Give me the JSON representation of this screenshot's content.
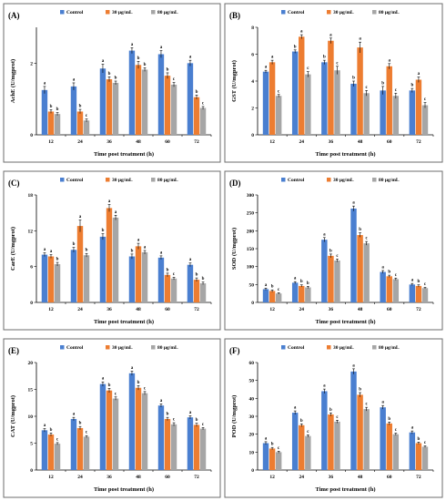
{
  "colors": {
    "Control": "#4a7fd0",
    "30 µg/mL": "#ed7d31",
    "80 µg/mL": "#a6a6a6"
  },
  "chart_data": [
    {
      "type": "bar",
      "panel": "(A)",
      "categories": [
        "12",
        "24",
        "36",
        "48",
        "60",
        "72"
      ],
      "xlabel": "Time post treatment (h)",
      "ylabel": "AchE (U/mgprot)",
      "ylim": [
        0,
        3
      ],
      "yticks": [
        "0",
        "2"
      ],
      "legend": "top",
      "series": [
        {
          "name": "Control",
          "values": [
            1.25,
            1.35,
            1.85,
            2.35,
            2.25,
            2.0
          ],
          "errors": [
            0.1,
            0.1,
            0.12,
            0.08,
            0.1,
            0.08
          ],
          "labels": [
            "a",
            "a",
            "a",
            "a",
            "a",
            "a"
          ]
        },
        {
          "name": "30 µg/mL",
          "values": [
            0.65,
            0.65,
            1.55,
            1.95,
            1.65,
            1.05
          ],
          "errors": [
            0.05,
            0.06,
            0.07,
            0.1,
            0.08,
            0.06
          ],
          "labels": [
            "b",
            "b",
            "b",
            "b",
            "b",
            "b"
          ]
        },
        {
          "name": "80 µg/mL",
          "values": [
            0.58,
            0.4,
            1.45,
            1.82,
            1.4,
            0.75
          ],
          "errors": [
            0.04,
            0.04,
            0.05,
            0.05,
            0.06,
            0.04
          ],
          "labels": [
            "b",
            "c",
            "b",
            "b",
            "c",
            "c"
          ]
        }
      ]
    },
    {
      "type": "bar",
      "panel": "(B)",
      "categories": [
        "12",
        "24",
        "36",
        "48",
        "60",
        "72"
      ],
      "xlabel": "Time post treatment (h)",
      "ylabel": "GST (U/mgprot)",
      "ylim": [
        0,
        8
      ],
      "yticks": [
        "0",
        "2",
        "4",
        "6",
        "8"
      ],
      "legend": "top",
      "series": [
        {
          "name": "Control",
          "values": [
            4.7,
            6.2,
            5.4,
            3.8,
            3.3,
            3.3
          ],
          "errors": [
            0.1,
            0.12,
            0.15,
            0.2,
            0.3,
            0.15
          ],
          "labels": [
            "a",
            "b",
            "b",
            "b",
            "b",
            "b"
          ]
        },
        {
          "name": "30 µg/mL",
          "values": [
            5.4,
            7.3,
            7.0,
            6.5,
            5.1,
            4.1
          ],
          "errors": [
            0.15,
            0.15,
            0.2,
            0.4,
            0.2,
            0.2
          ],
          "labels": [
            "a",
            "a",
            "a",
            "a",
            "a",
            "a"
          ]
        },
        {
          "name": "80 µg/mL",
          "values": [
            2.9,
            4.5,
            4.8,
            3.1,
            2.9,
            2.2
          ],
          "errors": [
            0.1,
            0.2,
            0.3,
            0.2,
            0.2,
            0.2
          ],
          "labels": [
            "c",
            "c",
            "c",
            "c",
            "c",
            "c"
          ]
        }
      ]
    },
    {
      "type": "bar",
      "panel": "(C)",
      "categories": [
        "12",
        "24",
        "36",
        "48",
        "60",
        "72"
      ],
      "xlabel": "Time post treatment (h)",
      "ylabel": "CarE (U/mgprot)",
      "ylim": [
        0,
        18
      ],
      "yticks": [
        "0",
        "6",
        "12",
        "18"
      ],
      "legend": "top",
      "series": [
        {
          "name": "Control",
          "values": [
            8.0,
            8.8,
            11.0,
            7.7,
            7.5,
            6.3
          ],
          "errors": [
            0.3,
            0.4,
            0.5,
            0.4,
            0.3,
            0.3
          ],
          "labels": [
            "a",
            "b",
            "b",
            "b",
            "a",
            "a"
          ]
        },
        {
          "name": "30 µg/mL",
          "values": [
            7.7,
            12.8,
            15.8,
            9.4,
            4.6,
            3.8
          ],
          "errors": [
            0.3,
            1.0,
            0.6,
            0.5,
            0.3,
            0.3
          ],
          "labels": [
            "a",
            "a",
            "a",
            "a",
            "b",
            "b"
          ]
        },
        {
          "name": "80 µg/mL",
          "values": [
            6.4,
            7.9,
            14.2,
            8.4,
            4.0,
            3.2
          ],
          "errors": [
            0.3,
            0.3,
            0.4,
            0.3,
            0.2,
            0.2
          ],
          "labels": [
            "b",
            "b",
            "a",
            "a",
            "c",
            "b"
          ]
        }
      ]
    },
    {
      "type": "bar",
      "panel": "(D)",
      "categories": [
        "12",
        "24",
        "36",
        "48",
        "60",
        "72"
      ],
      "xlabel": "Time post treatment (h)",
      "ylabel": "SOD (U/mgprot)",
      "ylim": [
        0,
        300
      ],
      "yticks": [
        "0",
        "50",
        "100",
        "150",
        "200",
        "250",
        "300"
      ],
      "legend": "top",
      "series": [
        {
          "name": "Control",
          "values": [
            37,
            55,
            175,
            262,
            85,
            50
          ],
          "errors": [
            3,
            3,
            6,
            7,
            4,
            3
          ],
          "labels": [
            "a",
            "a",
            "a",
            "a",
            "a",
            "a"
          ]
        },
        {
          "name": "30 µg/mL",
          "values": [
            32,
            46,
            130,
            188,
            73,
            46
          ],
          "errors": [
            3,
            3,
            5,
            6,
            3,
            3
          ],
          "labels": [
            "b",
            "b",
            "b",
            "b",
            "b",
            "b"
          ]
        },
        {
          "name": "80 µg/mL",
          "values": [
            25,
            42,
            117,
            165,
            65,
            40
          ],
          "errors": [
            2,
            3,
            4,
            5,
            3,
            2
          ],
          "labels": [
            "c",
            "b",
            "c",
            "c",
            "c",
            "c"
          ]
        }
      ]
    },
    {
      "type": "bar",
      "panel": "(E)",
      "categories": [
        "12",
        "24",
        "36",
        "48",
        "60",
        "72"
      ],
      "xlabel": "Time post treatment (h)",
      "ylabel": "CAT (U/mgprot)",
      "ylim": [
        0,
        20
      ],
      "yticks": [
        "0",
        "5",
        "10",
        "15",
        "20"
      ],
      "legend": "top",
      "series": [
        {
          "name": "Control",
          "values": [
            7.4,
            9.5,
            16.0,
            18.0,
            12.0,
            9.8
          ],
          "errors": [
            0.3,
            0.3,
            0.4,
            0.4,
            0.3,
            0.3
          ],
          "labels": [
            "a",
            "a",
            "a",
            "a",
            "a",
            "a"
          ]
        },
        {
          "name": "30 µg/mL",
          "values": [
            6.6,
            7.8,
            14.8,
            15.3,
            9.5,
            8.4
          ],
          "errors": [
            0.3,
            0.3,
            0.4,
            0.4,
            0.3,
            0.3
          ],
          "labels": [
            "b",
            "b",
            "b",
            "b",
            "b",
            "b"
          ]
        },
        {
          "name": "80 µg/mL",
          "values": [
            4.9,
            6.2,
            13.3,
            14.3,
            8.5,
            7.7
          ],
          "errors": [
            0.2,
            0.2,
            0.3,
            0.3,
            0.3,
            0.2
          ],
          "labels": [
            "c",
            "c",
            "c",
            "c",
            "c",
            "c"
          ]
        }
      ]
    },
    {
      "type": "bar",
      "panel": "(F)",
      "categories": [
        "12",
        "24",
        "36",
        "48",
        "60",
        "72"
      ],
      "xlabel": "Time post treatment (h)",
      "ylabel": "POD (U/mgprot)",
      "ylim": [
        0,
        60
      ],
      "yticks": [
        "0",
        "10",
        "20",
        "30",
        "40",
        "50",
        "60"
      ],
      "legend": "top",
      "series": [
        {
          "name": "Control",
          "values": [
            15,
            32,
            44,
            55,
            35,
            21
          ],
          "errors": [
            0.8,
            1.0,
            1.2,
            1.5,
            1.0,
            0.8
          ],
          "labels": [
            "a",
            "a",
            "a",
            "a",
            "a",
            "a"
          ]
        },
        {
          "name": "30 µg/mL",
          "values": [
            12,
            25,
            31,
            42,
            26,
            15
          ],
          "errors": [
            0.6,
            0.8,
            0.9,
            1.2,
            0.8,
            0.6
          ],
          "labels": [
            "b",
            "b",
            "b",
            "b",
            "b",
            "b"
          ]
        },
        {
          "name": "80 µg/mL",
          "values": [
            10,
            19,
            27,
            34,
            20,
            13
          ],
          "errors": [
            0.5,
            0.6,
            0.8,
            1.0,
            0.6,
            0.5
          ],
          "labels": [
            "c",
            "c",
            "c",
            "c",
            "c",
            "c"
          ]
        }
      ]
    }
  ]
}
